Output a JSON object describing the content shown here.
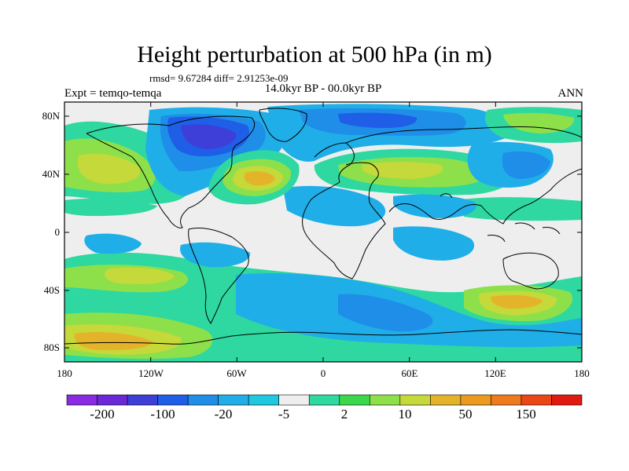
{
  "header": {
    "title": "Height perturbation at 500 hPa (in m)",
    "stats": "rmsd= 9.67284 diff= 2.91253e-09",
    "experiment": "Expt = temqo-temqa",
    "period": "14.0kyr BP - 00.0kyr BP",
    "season": "ANN"
  },
  "axes": {
    "lat_labels": [
      "80N",
      "40N",
      "0",
      "40S",
      "80S"
    ],
    "lon_labels": [
      "180",
      "120W",
      "60W",
      "0",
      "60E",
      "120E",
      "180"
    ]
  },
  "colorbar": {
    "labels": [
      "-200",
      "-100",
      "-20",
      "-5",
      "2",
      "10",
      "50",
      "150"
    ],
    "colors": [
      "#8a2be2",
      "#6a28d6",
      "#3e3ed8",
      "#1f5ee6",
      "#1e8ee8",
      "#20aee8",
      "#1fc7e0",
      "#eeeeee",
      "#2ed8a0",
      "#3ad84a",
      "#8ee04a",
      "#c6d93a",
      "#e3b42a",
      "#ec9a1e",
      "#ef7a1c",
      "#ea4616",
      "#e01a10"
    ]
  },
  "palette": {
    "neutral": "#eeeeee",
    "neg_light": "#20aee8",
    "neg_mid": "#1e8ee8",
    "neg_strong": "#1f5ee6",
    "neg_deep": "#3e3ed8",
    "pos_light": "#2ed8a0",
    "pos_mid": "#8ee04a",
    "pos_strong": "#c6d93a",
    "pos_deep": "#e3b42a"
  }
}
